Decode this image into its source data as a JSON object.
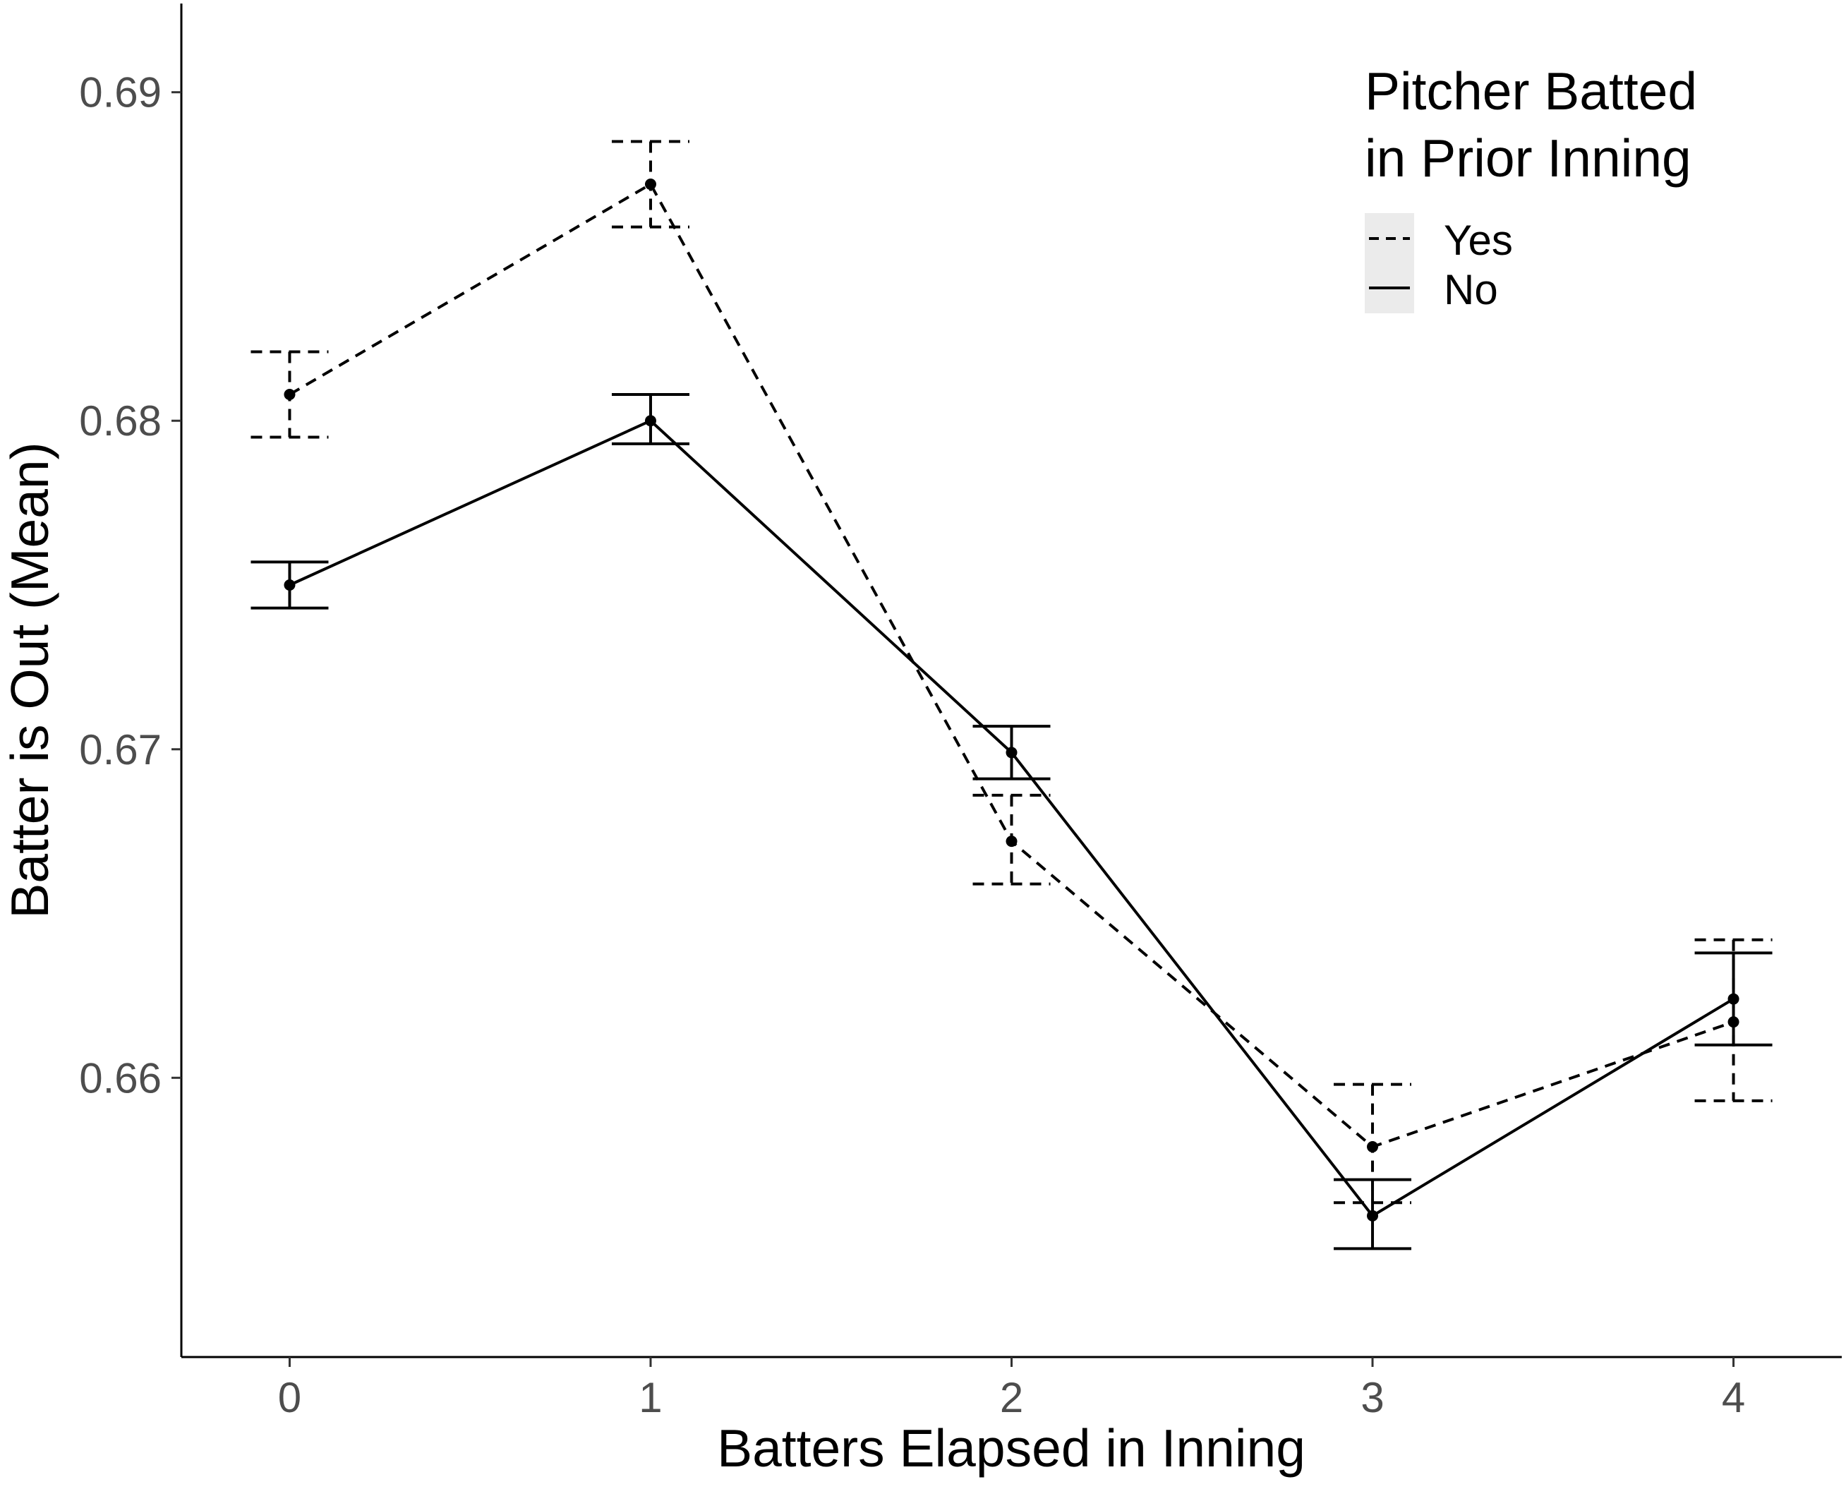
{
  "chart_data": {
    "type": "line",
    "xlabel": "Batters Elapsed in Inning",
    "ylabel": "Batter is Out (Mean)",
    "x": [
      0,
      1,
      2,
      3,
      4
    ],
    "x_tick_labels": [
      "0",
      "1",
      "2",
      "3",
      "4"
    ],
    "y_ticks": [
      0.66,
      0.67,
      0.68,
      0.69
    ],
    "y_tick_labels": [
      "0.66",
      "0.67",
      "0.68",
      "0.69"
    ],
    "xlim": [
      -0.3,
      4.3
    ],
    "ylim": [
      0.6515,
      0.6927
    ],
    "grid": false,
    "legend": {
      "title_lines": [
        "Pitcher Batted",
        "in Prior Inning"
      ],
      "position": "top-right"
    },
    "series": [
      {
        "name": "Yes",
        "line_style": "dashed",
        "values": [
          0.6808,
          0.6872,
          0.6672,
          0.6579,
          0.6617
        ],
        "err_low": [
          0.6795,
          0.6859,
          0.6659,
          0.6562,
          0.6593
        ],
        "err_high": [
          0.6821,
          0.6885,
          0.6686,
          0.6598,
          0.6642
        ]
      },
      {
        "name": "No",
        "line_style": "solid",
        "values": [
          0.675,
          0.68,
          0.6699,
          0.6558,
          0.6624
        ],
        "err_low": [
          0.6743,
          0.6793,
          0.6691,
          0.6548,
          0.661
        ],
        "err_high": [
          0.6757,
          0.6808,
          0.6707,
          0.6569,
          0.6638
        ]
      }
    ],
    "colors": {
      "line": "#000000",
      "axis": "#000000",
      "tick_text": "#4d4d4d",
      "legend_key_bg": "#ebebeb"
    }
  }
}
